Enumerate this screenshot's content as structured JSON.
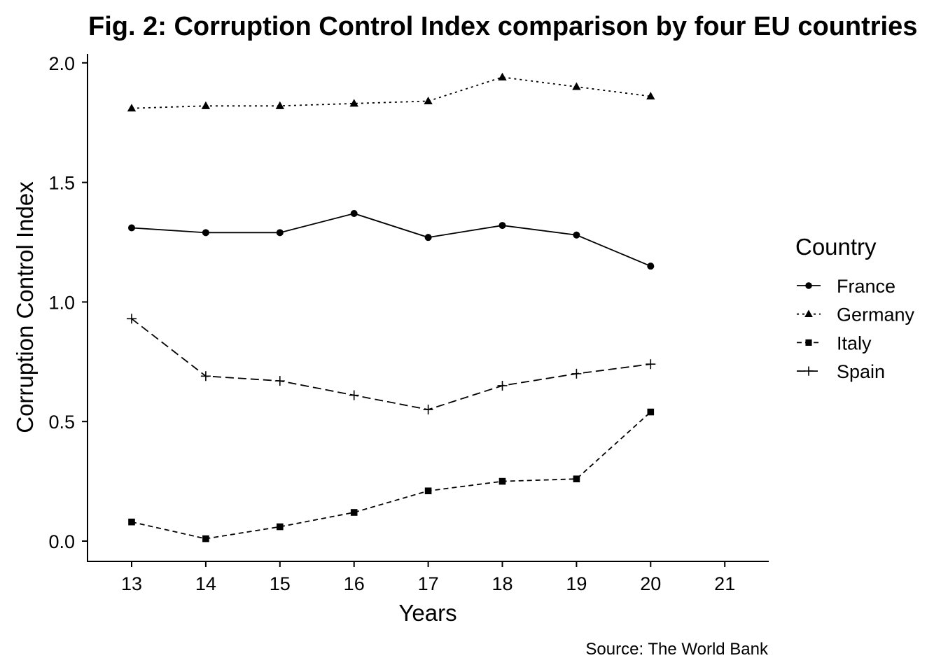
{
  "chart_data": {
    "type": "line",
    "title": "Fig. 2: Corruption Control Index comparison by four EU countries",
    "xlabel": "Years",
    "ylabel": "Corruption Control Index",
    "caption": "Source: The World Bank",
    "legend_title": "Country",
    "legend_position": "right",
    "grid": false,
    "xlim": [
      12.4,
      21.6
    ],
    "ylim": [
      -0.09,
      2.04
    ],
    "x_ticks": [
      13,
      14,
      15,
      16,
      17,
      18,
      19,
      20,
      21
    ],
    "y_ticks": [
      0.0,
      0.5,
      1.0,
      1.5,
      2.0
    ],
    "y_tick_labels": [
      "0.0",
      "0.5",
      "1.0",
      "1.5",
      "2.0"
    ],
    "x": [
      13,
      14,
      15,
      16,
      17,
      18,
      19,
      20
    ],
    "series": [
      {
        "name": "France",
        "marker": "circle",
        "line_style": "solid",
        "color": "#000000",
        "values": [
          1.31,
          1.29,
          1.29,
          1.37,
          1.27,
          1.32,
          1.28,
          1.15
        ]
      },
      {
        "name": "Germany",
        "marker": "triangle",
        "line_style": "dotted",
        "color": "#000000",
        "values": [
          1.81,
          1.82,
          1.82,
          1.83,
          1.84,
          1.94,
          1.9,
          1.86
        ]
      },
      {
        "name": "Italy",
        "marker": "square",
        "line_style": "dashed",
        "color": "#000000",
        "values": [
          0.08,
          0.01,
          0.06,
          0.12,
          0.21,
          0.25,
          0.26,
          0.54
        ]
      },
      {
        "name": "Spain",
        "marker": "plus",
        "line_style": "longdash",
        "color": "#000000",
        "values": [
          0.93,
          0.69,
          0.67,
          0.61,
          0.55,
          0.65,
          0.7,
          0.74
        ]
      }
    ]
  }
}
